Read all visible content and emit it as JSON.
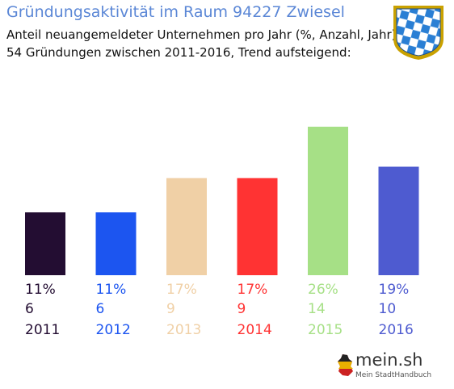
{
  "header": {
    "title": "Gründungsaktivität im Raum 94227 Zwiesel",
    "subtitle_line1": "Anteil neuangemeldeter Unternehmen pro Jahr (%, Anzahl, Jahr)",
    "subtitle_line2": "54 Gründungen zwischen 2011-2016, Trend aufsteigend:"
  },
  "emblem": {
    "icon": "bavaria-lozenge-coat-of-arms-icon",
    "colors": [
      "#2a7fd4",
      "#ffffff"
    ],
    "frame": "#c9a100"
  },
  "brand": {
    "name": "mein.sh",
    "tagline": "Mein StadtHandbuch"
  },
  "chart_data": {
    "type": "bar",
    "title": "Gründungsaktivität im Raum 94227 Zwiesel",
    "xlabel": "",
    "ylabel": "",
    "ylim": [
      0,
      26
    ],
    "grid": false,
    "legend": "none",
    "categories": [
      "2011",
      "2012",
      "2013",
      "2014",
      "2015",
      "2016"
    ],
    "values": [
      11,
      11,
      17,
      17,
      26,
      19
    ],
    "percent_labels": [
      "11%",
      "11%",
      "17%",
      "17%",
      "26%",
      "19%"
    ],
    "counts": [
      "6",
      "6",
      "9",
      "9",
      "14",
      "10"
    ],
    "colors": [
      "#230d32",
      "#1c55f0",
      "#f0d0a6",
      "#ff3333",
      "#a6e086",
      "#4e5bd0"
    ]
  }
}
